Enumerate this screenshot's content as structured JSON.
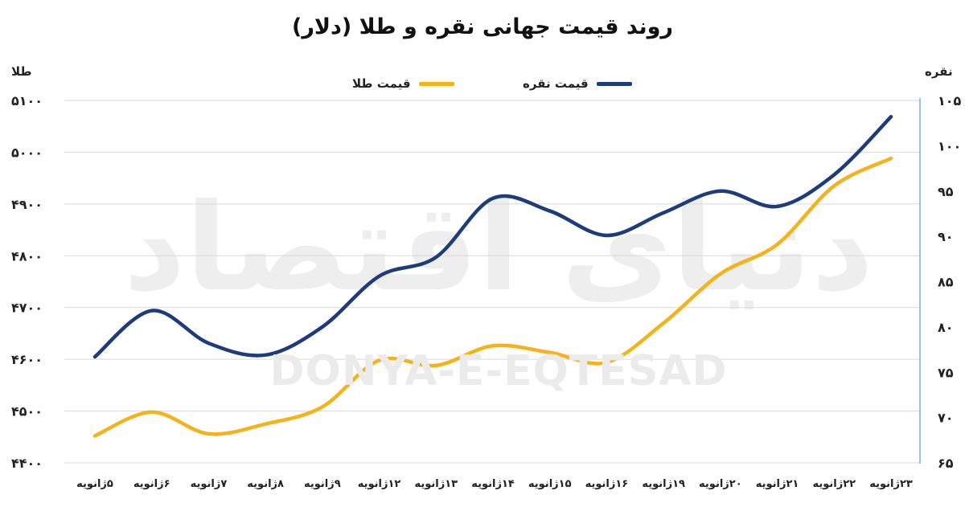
{
  "chart_data": {
    "type": "line",
    "title": "روند قیمت جهانی نقره و طلا (دلار)",
    "categories": [
      "۵ژانویه",
      "۶ژانویه",
      "۷ژانویه",
      "۸ژانویه",
      "۹ژانویه",
      "۱۲ژانویه",
      "۱۳ژانویه",
      "۱۴ژانویه",
      "۱۵ژانویه",
      "۱۶ژانویه",
      "۱۹ژانویه",
      "۲۰ژانویه",
      "۲۱ژانویه",
      "۲۲ژانویه",
      "۲۳ژانویه"
    ],
    "series": [
      {
        "name": "قیمت نقره",
        "axis": "right",
        "color": "#1f3c7a",
        "values": [
          76.7,
          81.8,
          78.2,
          76.9,
          80.0,
          85.6,
          87.7,
          94.2,
          92.8,
          90.1,
          92.6,
          95.0,
          93.3,
          96.8,
          103.2
        ]
      },
      {
        "name": "قیمت طلا",
        "axis": "left",
        "color": "#f4b21b",
        "values": [
          4452,
          4498,
          4456,
          4475,
          4508,
          4598,
          4588,
          4626,
          4613,
          4594,
          4670,
          4765,
          4822,
          4935,
          4988
        ]
      }
    ],
    "yleft": {
      "label": "طلا",
      "ylim": [
        4400,
        5100
      ],
      "ticks": [
        "۴۴۰۰",
        "۴۵۰۰",
        "۴۶۰۰",
        "۴۷۰۰",
        "۴۸۰۰",
        "۴۹۰۰",
        "۵۰۰۰",
        "۵۱۰۰"
      ]
    },
    "yright": {
      "label": "نقره",
      "ylim": [
        65,
        105
      ],
      "ticks": [
        "۶۵",
        "۷۰",
        "۷۵",
        "۸۰",
        "۸۵",
        "۹۰",
        "۹۵",
        "۱۰۰",
        "۱۰۵"
      ]
    },
    "grid": true,
    "legend": "top-center"
  },
  "watermark": {
    "latin": "DONYA-E-EQTESAD",
    "persian": "دنیای اقتصاد"
  }
}
